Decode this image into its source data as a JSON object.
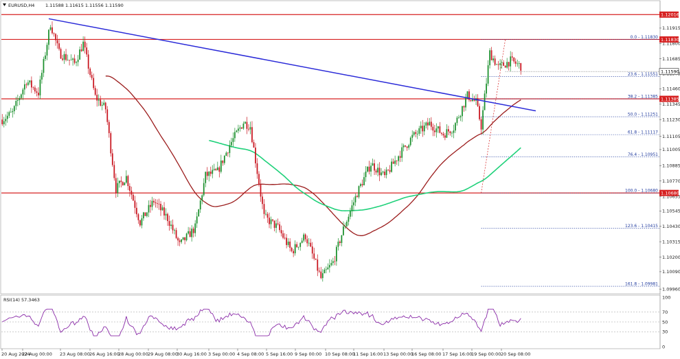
{
  "header": {
    "symbol": "EURUSD,H4",
    "quote": "1.11588 1.11615 1.11556 1.11590"
  },
  "rsi_header": "RSI(14) 57.3463",
  "colors": {
    "bull": "#1a8f2c",
    "bear": "#c8141e",
    "trend": "#2a2ad8",
    "ma100": "#9b1c1c",
    "ma200": "#1fd17a",
    "level": "#d62020",
    "fib": "#1f3a9e",
    "rsi": "#8a2ba8",
    "fibtrend": "#d62020"
  },
  "chart_data": {
    "type": "candlestick",
    "price_ticks": [
      "1.11915",
      "1.11800",
      "1.11685",
      "1.11575",
      "1.11460",
      "1.11345",
      "1.11230",
      "1.11105",
      "1.11005",
      "1.10885",
      "1.10770",
      "1.10655",
      "1.10545",
      "1.10430",
      "1.10315",
      "1.10200",
      "1.10090",
      "1.09960"
    ],
    "rsi_ticks": [
      "100",
      "70",
      "50",
      "30",
      "0"
    ],
    "x_labels": [
      "20 Aug 2024",
      "22 Aug 00:00",
      "23 Aug 08:00",
      "26 Aug 16:00",
      "28 Aug 00:00",
      "29 Aug 08:00",
      "30 Aug 16:00",
      "3 Sep 00:00",
      "4 Sep 08:00",
      "5 Sep 16:00",
      "9 Sep 00:00",
      "10 Sep 08:00",
      "11 Sep 16:00",
      "13 Sep 00:00",
      "16 Sep 08:00",
      "17 Sep 16:00",
      "19 Sep 00:00",
      "20 Sep 08:00"
    ],
    "ylim": [
      1.0993,
      1.1211
    ],
    "levels": [
      {
        "price": 1.12016,
        "label": "1.12016"
      },
      {
        "price": 1.1183,
        "label": "1.11830"
      },
      {
        "price": 1.11385,
        "label": "1.11385"
      },
      {
        "price": 1.1068,
        "label": "1.10680"
      }
    ],
    "current_price": {
      "price": 1.1159,
      "label": "1.11590"
    },
    "fib_levels": [
      {
        "price": 1.1183,
        "label": "0.0 - 1.11830"
      },
      {
        "price": 1.11551,
        "label": "23.6 - 1.11551"
      },
      {
        "price": 1.11385,
        "label": "38.2 - 1.11385"
      },
      {
        "price": 1.11251,
        "label": "50.0 - 1.11251"
      },
      {
        "price": 1.11117,
        "label": "61.8 - 1.11117"
      },
      {
        "price": 1.10951,
        "label": "76.4 - 1.10951"
      },
      {
        "price": 1.1068,
        "label": "100.0 - 1.10680"
      },
      {
        "price": 1.10415,
        "label": "123.6 - 1.10415"
      },
      {
        "price": 1.09981,
        "label": "161.8 - 1.09981"
      }
    ],
    "rsi_value": 57.3463
  }
}
